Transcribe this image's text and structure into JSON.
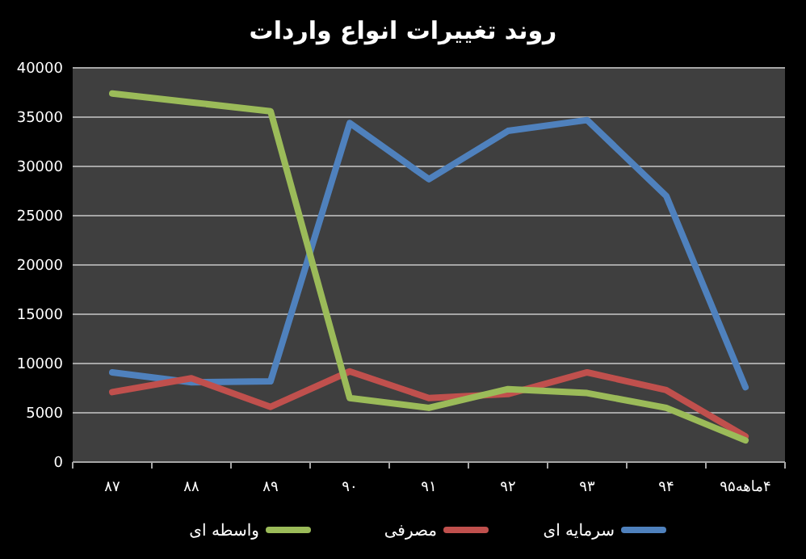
{
  "chart_data": {
    "type": "line",
    "title": "روند تغییرات انواع واردات",
    "categories": [
      "۸۷",
      "۸۸",
      "۸۹",
      "۹۰",
      "۹۱",
      "۹۲",
      "۹۳",
      "۹۴",
      "۴ماهه۹۵"
    ],
    "series": [
      {
        "name": "سرمایه ای",
        "color": "#4f81bd",
        "values": [
          9100,
          8100,
          8200,
          34400,
          28700,
          33600,
          34700,
          27000,
          7600
        ]
      },
      {
        "name": "مصرفی",
        "color": "#c0504d",
        "values": [
          7100,
          8500,
          5600,
          9200,
          6500,
          6900,
          9100,
          7300,
          2600
        ]
      },
      {
        "name": "واسطه ای",
        "color": "#9bbb59",
        "values": [
          37400,
          36500,
          35600,
          6500,
          5500,
          7400,
          7000,
          5500,
          2200
        ]
      }
    ],
    "ylim": [
      0,
      40000
    ],
    "yticks": [
      0,
      5000,
      10000,
      15000,
      20000,
      25000,
      30000,
      35000,
      40000
    ],
    "grid": "y",
    "legend": "bottom",
    "marker": "none",
    "line_style": "solid"
  }
}
